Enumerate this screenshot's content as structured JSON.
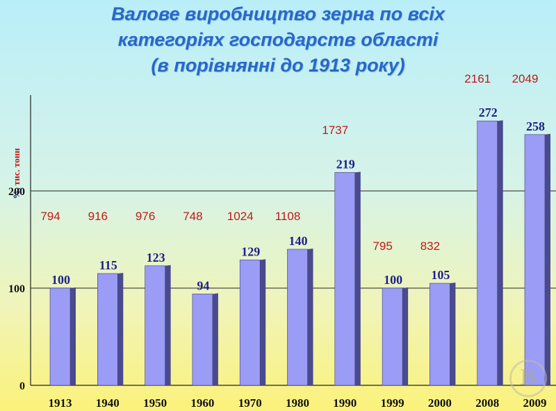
{
  "chart_data": {
    "type": "bar",
    "title": "Валове  виробництво  зерна  по  всіх\nкатегоріях господарств  області\n(в порівнянні до 1913 року)",
    "ylabel_unit_percent": "%,",
    "ylabel_unit_tonnes": "тис. тонн",
    "categories": [
      "1913",
      "1940",
      "1950",
      "1960",
      "1970",
      "1980",
      "1990",
      "1999",
      "2000",
      "2008",
      "2009"
    ],
    "series": [
      {
        "name": "%",
        "values": [
          100,
          115,
          123,
          94,
          129,
          140,
          219,
          100,
          105,
          272,
          258
        ]
      },
      {
        "name": "тис. тонн",
        "values": [
          794,
          916,
          976,
          748,
          1024,
          1108,
          1737,
          795,
          832,
          2161,
          2049
        ]
      }
    ],
    "yticks": [
      "0",
      "100",
      "200"
    ],
    "ylim": [
      0,
      300
    ],
    "grid": true,
    "colors": {
      "bar_front": "#9a9cf5",
      "bar_side": "#4a4a8e",
      "value_label": "#1f1f8a",
      "tonnes_label": "#c01818",
      "title": "#2a67c9"
    }
  },
  "watermark_letter": "В"
}
